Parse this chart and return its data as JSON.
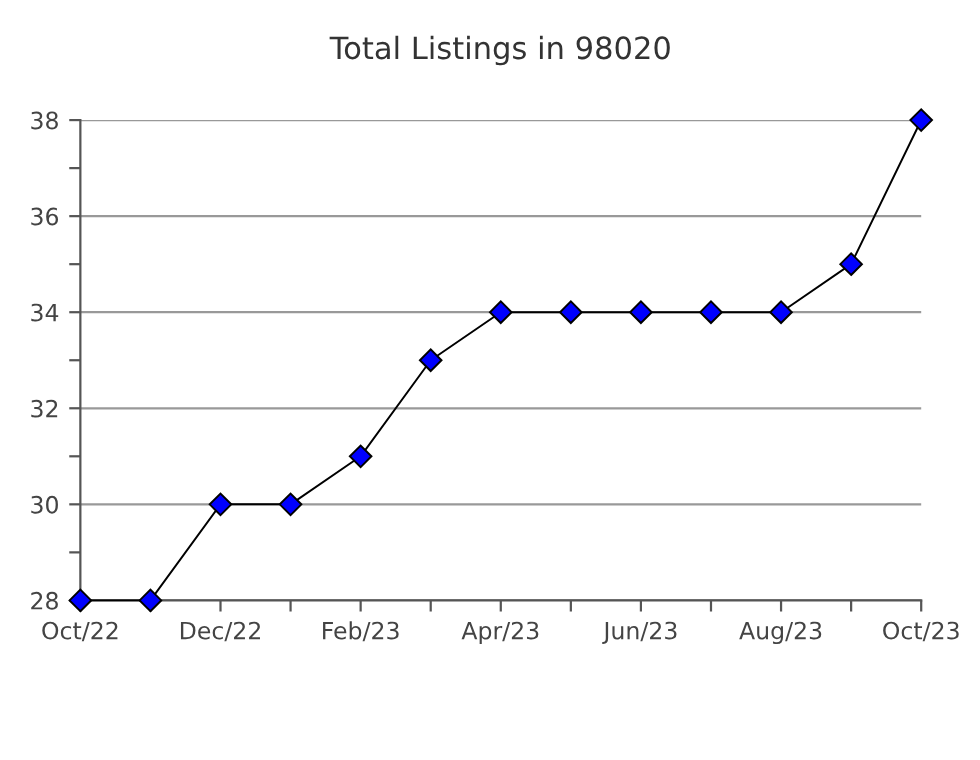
{
  "chart_data": {
    "type": "line",
    "title": "Total Listings in 98020",
    "categories": [
      "Oct/22",
      null,
      "Dec/22",
      null,
      "Feb/23",
      null,
      "Apr/23",
      null,
      "Jun/23",
      null,
      "Aug/23",
      null,
      "Oct/23"
    ],
    "series": [
      {
        "color": "#0000ff",
        "values": [
          28,
          28,
          30,
          30,
          31,
          33,
          34,
          34,
          34,
          34,
          34,
          35,
          38
        ]
      }
    ],
    "ylim": [
      28,
      38
    ],
    "yticks": [
      28,
      {
        "value": 29,
        "label": null
      },
      30,
      {
        "value": 31,
        "label": null
      },
      32,
      {
        "value": 33,
        "label": null
      },
      34,
      {
        "value": 35,
        "label": null
      },
      36,
      {
        "value": 37,
        "label": null
      },
      38
    ],
    "grid": "y",
    "marker": "diamond",
    "line_style": "solid",
    "legend": false
  }
}
